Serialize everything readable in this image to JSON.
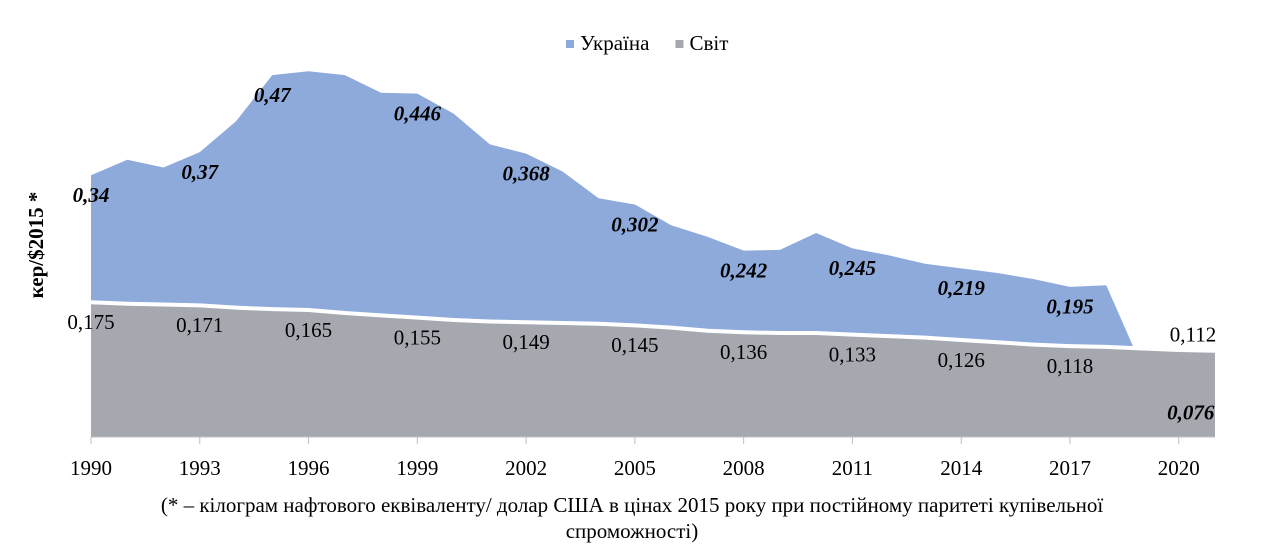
{
  "chart_data": {
    "type": "area",
    "y_label": "кер/$2015 *",
    "footnote": [
      "(* – кілограм нафтового еквіваленту/ долар США в цінах 2015 року при постійному паритеті купівельної",
      "спроможності)"
    ],
    "x": [
      1990,
      1991,
      1992,
      1993,
      1994,
      1995,
      1996,
      1997,
      1998,
      1999,
      2000,
      2001,
      2002,
      2003,
      2004,
      2005,
      2006,
      2007,
      2008,
      2009,
      2010,
      2011,
      2012,
      2013,
      2014,
      2015,
      2016,
      2017,
      2018,
      2019,
      2020,
      2021
    ],
    "series": [
      {
        "name": "Україна",
        "color": "#8eaadb",
        "values": [
          0.34,
          0.36,
          0.35,
          0.37,
          0.41,
          0.47,
          0.475,
          0.47,
          0.447,
          0.446,
          0.42,
          0.38,
          0.368,
          0.345,
          0.31,
          0.302,
          0.275,
          0.26,
          0.242,
          0.243,
          0.265,
          0.245,
          0.236,
          0.225,
          0.219,
          0.213,
          0.205,
          0.195,
          0.197,
          0.09,
          0.076,
          0.076
        ],
        "value_labels": [
          "0,34",
          null,
          null,
          "0,37",
          null,
          "0,47",
          null,
          null,
          null,
          "0,446",
          null,
          null,
          "0,368",
          null,
          null,
          "0,302",
          null,
          null,
          "0,242",
          null,
          null,
          "0,245",
          null,
          null,
          "0,219",
          null,
          null,
          "0,195",
          null,
          null,
          "0,076",
          null
        ]
      },
      {
        "name": "Світ",
        "color": "#a6a8b0",
        "values": [
          0.175,
          0.173,
          0.172,
          0.171,
          0.168,
          0.166,
          0.165,
          0.161,
          0.158,
          0.155,
          0.152,
          0.15,
          0.149,
          0.148,
          0.147,
          0.145,
          0.142,
          0.138,
          0.136,
          0.135,
          0.135,
          0.133,
          0.131,
          0.129,
          0.126,
          0.123,
          0.12,
          0.118,
          0.117,
          0.115,
          0.113,
          0.112
        ],
        "value_labels": [
          "0,175",
          null,
          null,
          "0,171",
          null,
          null,
          "0,165",
          null,
          null,
          "0,155",
          null,
          null,
          "0,149",
          null,
          null,
          "0,145",
          null,
          null,
          "0,136",
          null,
          null,
          "0,133",
          null,
          null,
          "0,126",
          null,
          null,
          "0,118",
          null,
          null,
          null,
          "0,112"
        ]
      }
    ],
    "xlim": [
      1990,
      2021
    ],
    "xticks": [
      1990,
      1993,
      1996,
      1999,
      2002,
      2005,
      2008,
      2011,
      2014,
      2017,
      2020
    ],
    "ylim": [
      0,
      0.5
    ],
    "grid": false,
    "legend": "top"
  }
}
